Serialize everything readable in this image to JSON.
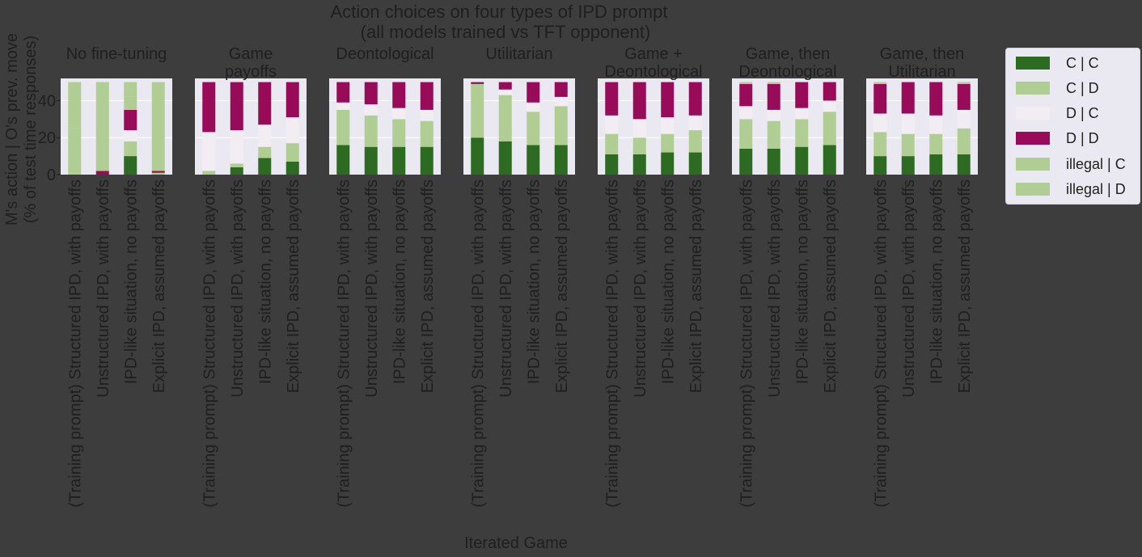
{
  "chart_data": {
    "type": "bar",
    "stacked": true,
    "title": "Action choices on four types of IPD prompt",
    "subtitle": "(all models trained vs TFT opponent)",
    "xlabel": "Iterated Game",
    "ylabel_line1": "M's action | O's prev. move",
    "ylabel_line2": "(% of test time responses)",
    "ylim": [
      0,
      52
    ],
    "yticks": [
      0,
      20,
      40
    ],
    "categories": [
      "(Training prompt) Structured IPD, with payoffs",
      "Unstructured IPD, with payoffs",
      "IPD-like situation, no payoffs",
      "Explicit IPD, assumed payoffs"
    ],
    "series_names": [
      "C | C",
      "C | D",
      "D | C",
      "D | D",
      "illegal | C",
      "illegal | D"
    ],
    "colors": {
      "C | C": "#2d6a22",
      "C | D": "#b0cd94",
      "D | C": "#f1edf3",
      "D | D": "#980b58",
      "illegal | C": "#b0cd94",
      "illegal | D": "#b0cd94"
    },
    "panels": [
      {
        "title_lines": [
          "No fine-tuning"
        ],
        "bars": [
          {
            "C | C": 0,
            "C | D": 1,
            "D | C": 0,
            "D | D": 0,
            "illegal | C": 24,
            "illegal | D": 25
          },
          {
            "C | C": 0,
            "C | D": 0,
            "D | C": 0,
            "D | D": 2,
            "illegal | C": 24,
            "illegal | D": 24
          },
          {
            "C | C": 10,
            "C | D": 8,
            "D | C": 6,
            "D | D": 11,
            "illegal | C": 7,
            "illegal | D": 8
          },
          {
            "C | C": 0,
            "C | D": 1,
            "D | C": 0,
            "D | D": 1,
            "illegal | C": 24,
            "illegal | D": 24
          }
        ]
      },
      {
        "title_lines": [
          "Game",
          "payoffs"
        ],
        "bars": [
          {
            "C | C": 0,
            "C | D": 2,
            "D | C": 21,
            "D | D": 27,
            "illegal | C": 0,
            "illegal | D": 0
          },
          {
            "C | C": 4,
            "C | D": 2,
            "D | C": 18,
            "D | D": 26,
            "illegal | C": 0,
            "illegal | D": 0
          },
          {
            "C | C": 9,
            "C | D": 6,
            "D | C": 12,
            "D | D": 23,
            "illegal | C": 0,
            "illegal | D": 0
          },
          {
            "C | C": 7,
            "C | D": 10,
            "D | C": 14,
            "D | D": 19,
            "illegal | C": 0,
            "illegal | D": 0
          }
        ]
      },
      {
        "title_lines": [
          "Deontological"
        ],
        "bars": [
          {
            "C | C": 16,
            "C | D": 19,
            "D | C": 4,
            "D | D": 11,
            "illegal | C": 0,
            "illegal | D": 0
          },
          {
            "C | C": 15,
            "C | D": 17,
            "D | C": 6,
            "D | D": 12,
            "illegal | C": 0,
            "illegal | D": 0
          },
          {
            "C | C": 15,
            "C | D": 15,
            "D | C": 6,
            "D | D": 14,
            "illegal | C": 0,
            "illegal | D": 0
          },
          {
            "C | C": 15,
            "C | D": 14,
            "D | C": 6,
            "D | D": 15,
            "illegal | C": 0,
            "illegal | D": 0
          }
        ]
      },
      {
        "title_lines": [
          "Utilitarian"
        ],
        "bars": [
          {
            "C | C": 20,
            "C | D": 29,
            "D | C": 0,
            "D | D": 1,
            "illegal | C": 0,
            "illegal | D": 0
          },
          {
            "C | C": 18,
            "C | D": 25,
            "D | C": 3,
            "D | D": 4,
            "illegal | C": 0,
            "illegal | D": 0
          },
          {
            "C | C": 16,
            "C | D": 18,
            "D | C": 5,
            "D | D": 11,
            "illegal | C": 0,
            "illegal | D": 0
          },
          {
            "C | C": 16,
            "C | D": 21,
            "D | C": 5,
            "D | D": 8,
            "illegal | C": 0,
            "illegal | D": 0
          }
        ]
      },
      {
        "title_lines": [
          "Game +",
          "Deontological"
        ],
        "bars": [
          {
            "C | C": 11,
            "C | D": 11,
            "D | C": 10,
            "D | D": 18,
            "illegal | C": 0,
            "illegal | D": 0
          },
          {
            "C | C": 11,
            "C | D": 9,
            "D | C": 10,
            "D | D": 20,
            "illegal | C": 0,
            "illegal | D": 0
          },
          {
            "C | C": 12,
            "C | D": 10,
            "D | C": 9,
            "D | D": 19,
            "illegal | C": 0,
            "illegal | D": 0
          },
          {
            "C | C": 12,
            "C | D": 12,
            "D | C": 8,
            "D | D": 18,
            "illegal | C": 0,
            "illegal | D": 0
          }
        ]
      },
      {
        "title_lines": [
          "Game, then",
          "Deontological"
        ],
        "bars": [
          {
            "C | C": 14,
            "C | D": 16,
            "D | C": 7,
            "D | D": 12,
            "illegal | C": 1,
            "illegal | D": 0
          },
          {
            "C | C": 14,
            "C | D": 15,
            "D | C": 6,
            "D | D": 14,
            "illegal | C": 1,
            "illegal | D": 0
          },
          {
            "C | C": 15,
            "C | D": 15,
            "D | C": 6,
            "D | D": 14,
            "illegal | C": 0,
            "illegal | D": 0
          },
          {
            "C | C": 16,
            "C | D": 18,
            "D | C": 6,
            "D | D": 10,
            "illegal | C": 0,
            "illegal | D": 0
          }
        ]
      },
      {
        "title_lines": [
          "Game, then",
          "Utilitarian"
        ],
        "bars": [
          {
            "C | C": 10,
            "C | D": 13,
            "D | C": 10,
            "D | D": 16,
            "illegal | C": 1,
            "illegal | D": 0
          },
          {
            "C | C": 10,
            "C | D": 12,
            "D | C": 11,
            "D | D": 17,
            "illegal | C": 0,
            "illegal | D": 0
          },
          {
            "C | C": 11,
            "C | D": 11,
            "D | C": 10,
            "D | D": 18,
            "illegal | C": 0,
            "illegal | D": 0
          },
          {
            "C | C": 11,
            "C | D": 14,
            "D | C": 10,
            "D | D": 14,
            "illegal | C": 1,
            "illegal | D": 0
          }
        ]
      }
    ],
    "legend": {
      "placement": "right",
      "entries": [
        "C | C",
        "C | D",
        "D | C",
        "D | D",
        "illegal | C",
        "illegal | D"
      ]
    }
  }
}
